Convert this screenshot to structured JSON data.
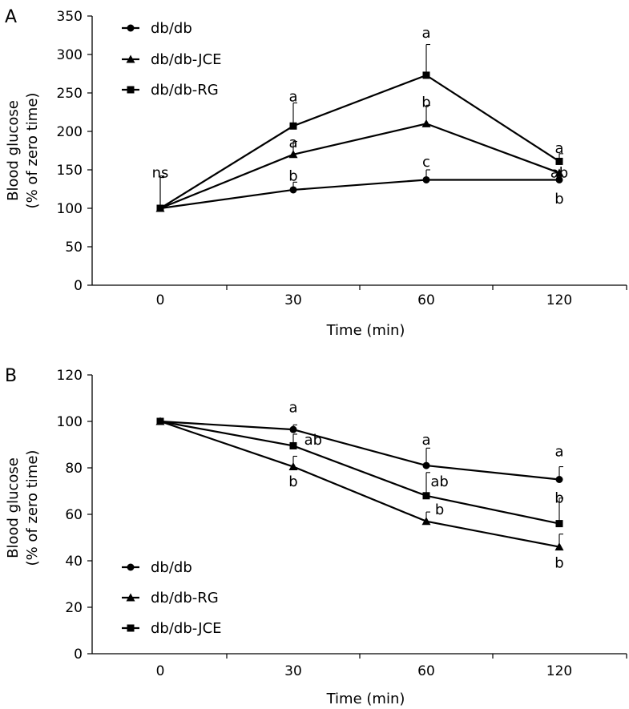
{
  "chart_data": [
    {
      "panel_label": "A",
      "type": "line",
      "xlabel": "Time (min)",
      "ylabel_line1": "Blood glucose",
      "ylabel_line2": "(% of zero time)",
      "categories": [
        "0",
        "30",
        "60",
        "120"
      ],
      "ylim": [
        0,
        350
      ],
      "yticks": [
        0,
        50,
        100,
        150,
        200,
        250,
        300,
        350
      ],
      "series": [
        {
          "name": "db/db",
          "marker": "circle",
          "values": [
            100,
            124,
            137,
            137
          ],
          "err": [
            42,
            10,
            13,
            0
          ]
        },
        {
          "name": "db/db-JCE",
          "marker": "triangle",
          "values": [
            100,
            170,
            210,
            146
          ],
          "err": [
            0,
            17,
            24,
            0
          ]
        },
        {
          "name": "db/db-RG",
          "marker": "square",
          "values": [
            100,
            207,
            273,
            161
          ],
          "err": [
            40,
            30,
            40,
            10
          ]
        }
      ],
      "annotations": [
        {
          "text": "ns",
          "x": 0,
          "y": 140
        },
        {
          "text": "a",
          "x": 1,
          "y": 239
        },
        {
          "text": "a",
          "x": 1,
          "y": 179
        },
        {
          "text": "b",
          "x": 1,
          "y": 136
        },
        {
          "text": "a",
          "x": 2,
          "y": 322
        },
        {
          "text": "b",
          "x": 2,
          "y": 232
        },
        {
          "text": "c",
          "x": 2,
          "y": 154
        },
        {
          "text": "a",
          "x": 3,
          "y": 172
        },
        {
          "text": "ab",
          "x": 3,
          "y": 140
        },
        {
          "text": "b",
          "x": 3,
          "y": 106
        }
      ],
      "legend": {
        "placement": "top-left",
        "entries": [
          "db/db",
          "db/db-JCE",
          "db/db-RG"
        ]
      }
    },
    {
      "panel_label": "B",
      "type": "line",
      "xlabel": "Time (min)",
      "ylabel_line1": "Blood glucose",
      "ylabel_line2": "(% of zero time)",
      "categories": [
        "0",
        "30",
        "60",
        "120"
      ],
      "ylim": [
        0,
        120
      ],
      "yticks": [
        0,
        20,
        40,
        60,
        80,
        100,
        120
      ],
      "series": [
        {
          "name": "db/db",
          "marker": "circle",
          "values": [
            100,
            96.5,
            81,
            75
          ],
          "err": [
            0,
            2,
            7.5,
            5.5
          ]
        },
        {
          "name": "db/db-RG",
          "marker": "triangle",
          "values": [
            100,
            80.5,
            57,
            46
          ],
          "err": [
            0,
            4.5,
            4,
            5.5
          ]
        },
        {
          "name": "db/db-JCE",
          "marker": "square",
          "values": [
            100,
            89.5,
            68,
            56
          ],
          "err": [
            0,
            5,
            10,
            11
          ]
        }
      ],
      "annotations": [
        {
          "text": "a",
          "x": 1,
          "y": 104
        },
        {
          "text": "ab",
          "x": 1.15,
          "y": 90
        },
        {
          "text": "b",
          "x": 1,
          "y": 72
        },
        {
          "text": "a",
          "x": 2,
          "y": 90
        },
        {
          "text": "ab",
          "x": 2.1,
          "y": 72
        },
        {
          "text": "b",
          "x": 2.1,
          "y": 60
        },
        {
          "text": "a",
          "x": 3,
          "y": 85
        },
        {
          "text": "b",
          "x": 3.1,
          "y": 65
        },
        {
          "text": "b",
          "x": 3,
          "y": 37
        }
      ],
      "legend": {
        "placement": "bottom-left",
        "entries": [
          "db/db",
          "db/db-RG",
          "db/db-JCE"
        ]
      }
    }
  ]
}
